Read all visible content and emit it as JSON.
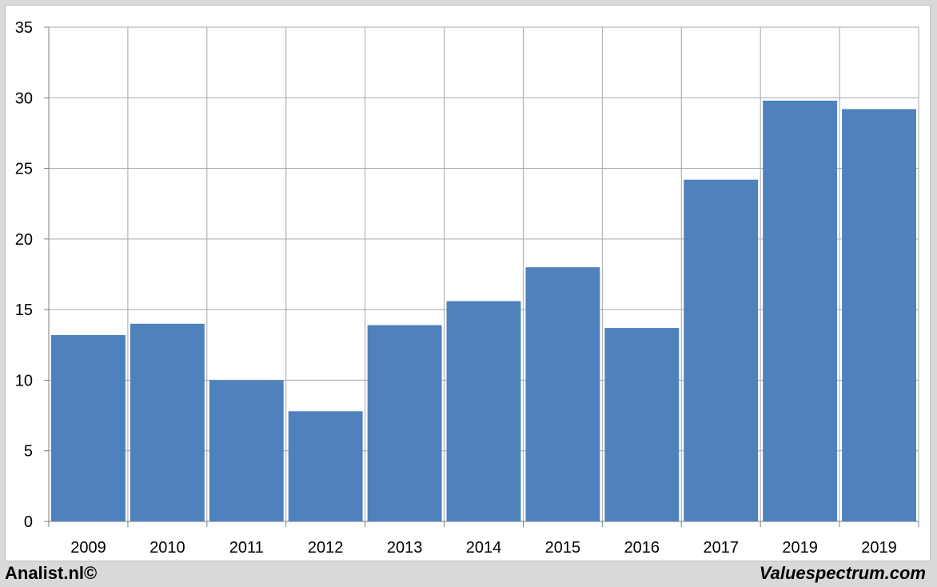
{
  "chart_data": {
    "type": "bar",
    "categories": [
      "2009",
      "2010",
      "2011",
      "2012",
      "2013",
      "2014",
      "2015",
      "2016",
      "2017",
      "2019",
      "2019"
    ],
    "values": [
      13.2,
      14.0,
      10.0,
      7.8,
      13.9,
      15.6,
      18.0,
      13.7,
      24.2,
      29.8,
      29.2
    ],
    "title": "",
    "xlabel": "",
    "ylabel": "",
    "ylim": [
      0,
      35
    ],
    "yticks": [
      0,
      5,
      10,
      15,
      20,
      25,
      30,
      35
    ],
    "grid": true,
    "bar_color": "#4f81bd",
    "grid_color": "#a6a6a6"
  },
  "footer": {
    "left": "Analist.nl©",
    "right": "Valuespectrum.com"
  }
}
